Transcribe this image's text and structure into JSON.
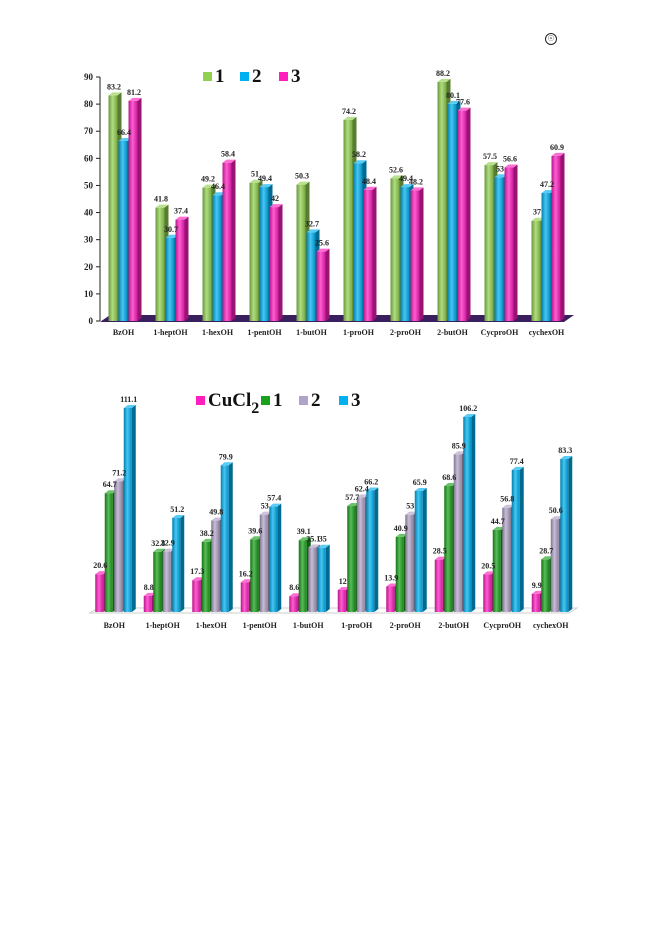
{
  "corner_symbol": "☉",
  "colors": {
    "green": "#92d050",
    "green_dark": "#1aa11a",
    "blue": "#00b0f0",
    "magenta": "#ff1fbf",
    "lavender": "#b1a3c7",
    "floor": "#3a1f5f"
  },
  "chart_data": [
    {
      "type": "bar",
      "categories": [
        "BzOH",
        "1-heptOH",
        "1-hexOH",
        "1-pentOH",
        "1-butOH",
        "1-proOH",
        "2-proOH",
        "2-butOH",
        "CycproOH",
        "cychexOH"
      ],
      "series": [
        {
          "name": "1",
          "color": "#92d050",
          "values": [
            83.2,
            41.8,
            49.2,
            51,
            50.3,
            74.2,
            52.6,
            88.2,
            57.5,
            37
          ],
          "labels": [
            "83.2",
            "41.8",
            "49.2",
            "51",
            "50.3",
            "74.2",
            "52.6",
            "88.2",
            "57.5",
            "37"
          ]
        },
        {
          "name": "2",
          "color": "#00b0f0",
          "values": [
            66.4,
            30.7,
            46.4,
            49.4,
            32.7,
            58.2,
            49.4,
            80.1,
            53,
            47.2
          ],
          "labels": [
            "66.4",
            "30.7",
            "46.4",
            "49.4",
            "32.7",
            "58.2",
            "49.4",
            "80.1",
            "53",
            "47.2"
          ]
        },
        {
          "name": "3",
          "color": "#ff1fbf",
          "values": [
            81.2,
            37.4,
            58.4,
            42,
            25.6,
            48.4,
            48.2,
            77.6,
            56.6,
            60.9
          ],
          "labels": [
            "81.2",
            "37.4",
            "58.4",
            "42",
            "25.6",
            "48.4",
            "48.2",
            "77.6",
            "56.6",
            "60.9"
          ]
        }
      ],
      "yticks": [
        "0",
        "10",
        "20",
        "30",
        "40",
        "50",
        "60",
        "70",
        "80",
        "90"
      ],
      "ylim": [
        0,
        90
      ],
      "legend": "top-center",
      "grid": false
    },
    {
      "type": "bar",
      "categories": [
        "BzOH",
        "1-heptOH",
        "1-hexOH",
        "1-pentOH",
        "1-butOH",
        "1-proOH",
        "2-proOH",
        "2-butOH",
        "CycproOH",
        "cychexOH"
      ],
      "series": [
        {
          "name": "CuCl2",
          "name_base": "CuCl",
          "name_sub": "2",
          "color": "#ff1fbf",
          "values": [
            20.6,
            8.8,
            17.3,
            16.2,
            8.6,
            12,
            13.9,
            28.5,
            20.5,
            9.9
          ],
          "labels": [
            "20.6",
            "8.8",
            "17.3",
            "16.2",
            "8.6",
            "12",
            "13.9",
            "28.5",
            "20.5",
            "9.9"
          ]
        },
        {
          "name": "1",
          "color": "#1aa11a",
          "values": [
            64.7,
            32.8,
            38.2,
            39.6,
            39.1,
            57.7,
            40.9,
            68.6,
            44.7,
            28.7
          ],
          "labels": [
            "64.7",
            "32.8",
            "38.2",
            "39.6",
            "39.1",
            "57.7",
            "40.9",
            "68.6",
            "44.7",
            "28.7"
          ]
        },
        {
          "name": "2",
          "color": "#b1a3c7",
          "values": [
            71.2,
            32.9,
            49.8,
            53,
            35.1,
            62.4,
            53,
            85.9,
            56.8,
            50.6
          ],
          "labels": [
            "71.2",
            "32.9",
            "49.8",
            "53",
            "35.1",
            "62.4",
            "53",
            "85.9",
            "56.8",
            "50.6"
          ]
        },
        {
          "name": "3",
          "color": "#00b0f0",
          "values": [
            111.1,
            51.2,
            79.9,
            57.4,
            35,
            66.2,
            65.9,
            106.2,
            77.4,
            83.3
          ],
          "labels": [
            "111.1",
            "51.2",
            "79.9",
            "57.4",
            "35",
            "66.2",
            "65.9",
            "106.2",
            "77.4",
            "83.3"
          ]
        }
      ],
      "ylim": [
        0,
        115
      ],
      "legend": "top-center",
      "grid": false
    }
  ]
}
